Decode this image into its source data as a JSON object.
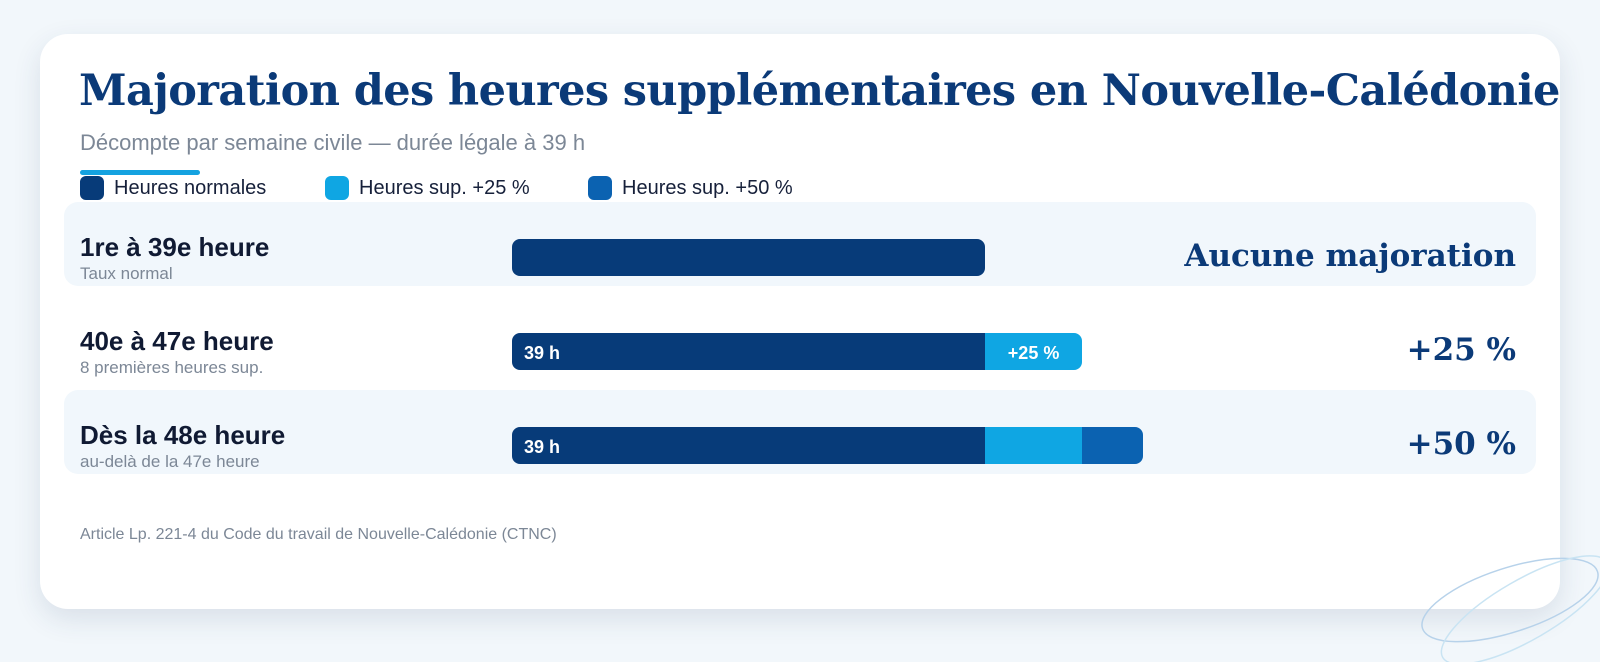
{
  "header": {
    "title": "Majoration des heures supplémentaires en Nouvelle-Calédonie",
    "subtitle": "Décompte par semaine civile — durée légale à 39 h"
  },
  "colors": {
    "normal": "#073b79",
    "sup25": "#0fa6e3",
    "sup50": "#0b62b1",
    "title": "#0b3a78",
    "accent": "#14a2e0"
  },
  "legend": [
    {
      "label": "Heures normales",
      "color": "#073b79"
    },
    {
      "label": "Heures sup. +25 %",
      "color": "#0fa6e3"
    },
    {
      "label": "Heures sup. +50 %",
      "color": "#0b62b1"
    }
  ],
  "chart_data": {
    "type": "bar",
    "orientation": "horizontal",
    "stacked": true,
    "title": "Majoration des heures supplémentaires en Nouvelle-Calédonie",
    "subtitle": "Décompte par semaine civile — durée légale à 39 h",
    "categories": [
      "1re à 39e heure",
      "40e à 47e heure",
      "Dès la 48e heure"
    ],
    "category_subtitles": [
      "Taux normal",
      "8 premières heures sup.",
      "au-delà de la 47e heure"
    ],
    "series": [
      {
        "name": "Heures normales",
        "values": [
          39,
          39,
          39
        ]
      },
      {
        "name": "Heures sup. +25 %",
        "values": [
          0,
          8,
          8
        ]
      },
      {
        "name": "Heures sup. +50 %",
        "values": [
          0,
          0,
          5
        ]
      }
    ],
    "segment_labels": [
      [
        "",
        "",
        ""
      ],
      [
        "39 h",
        "+25 %",
        ""
      ],
      [
        "39 h",
        "",
        ""
      ]
    ],
    "value_labels": [
      "Aucune majoration",
      "+25 %",
      "+50 %"
    ],
    "xlim": [
      0,
      75
    ],
    "grid": false,
    "legend_position": "top-left"
  },
  "footnote": "Article Lp. 221-4 du Code du travail de Nouvelle-Calédonie (CTNC)"
}
